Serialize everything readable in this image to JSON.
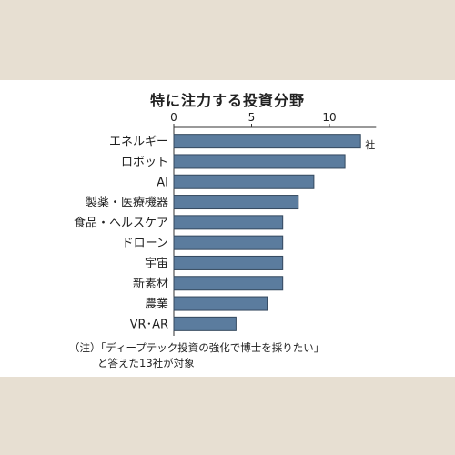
{
  "title": "特に注力する投資分野",
  "note_line1": "（注）「ディープテック投資の強化で博士を採りたい」",
  "note_line2": "と答えた13社が対象",
  "chart_data": {
    "type": "bar",
    "orientation": "horizontal",
    "title": "特に注力する投資分野",
    "unit": "社",
    "categories": [
      "エネルギー",
      "ロボット",
      "AI",
      "製薬・医療機器",
      "食品・ヘルスケア",
      "ドローン",
      "宇宙",
      "新素材",
      "農業",
      "VR･AR"
    ],
    "values": [
      12,
      11,
      9,
      8,
      7,
      7,
      7,
      7,
      6,
      4
    ],
    "xlim": [
      0,
      13
    ],
    "xticks": [
      0,
      5,
      10
    ],
    "grid": false,
    "bar_color": "#5b7c9e",
    "bar_edge_color": "#34495f"
  }
}
